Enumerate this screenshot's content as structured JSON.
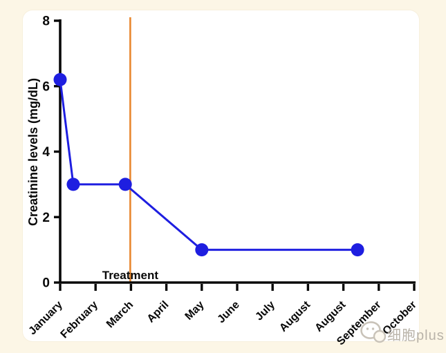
{
  "page": {
    "background_color": "#fcf6e6",
    "card_color": "#ffffff"
  },
  "chart_data": {
    "type": "line",
    "title": "",
    "xlabel": "",
    "ylabel": "Creatinine levels (mg/dL)",
    "ylim": [
      0,
      8
    ],
    "yticks": [
      0,
      2,
      4,
      6,
      8
    ],
    "x_tick_labels": [
      "January",
      "February",
      "March",
      "April",
      "May",
      "June",
      "July",
      "August",
      "August",
      "September",
      "October"
    ],
    "grid": false,
    "legend_position": "none",
    "axis_color": "#080808",
    "series": [
      {
        "name": "Creatinine levels",
        "color": "#1e1ee0",
        "marker": "circle",
        "x_in_tick_units": [
          0,
          0.37,
          1.84,
          4.0,
          8.4
        ],
        "values": [
          6.2,
          3.0,
          3.0,
          1.0,
          1.0
        ]
      }
    ],
    "annotations": [
      {
        "type": "vline",
        "label": "Treatment",
        "x_in_tick_units": 1.98,
        "line_color": "#e8872e",
        "label_color": "#080808"
      }
    ]
  },
  "watermark": {
    "text": "细胞plus",
    "color": "#b9b3a9",
    "icon": "chat-bubbles-logo-icon",
    "icon_color": "#c9c3b9"
  }
}
